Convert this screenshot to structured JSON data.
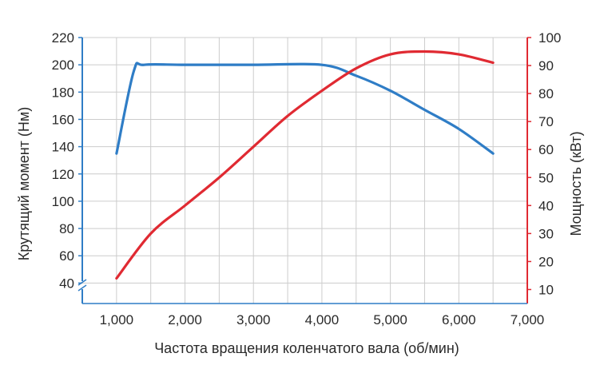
{
  "chart_data": {
    "type": "line",
    "xlabel": "Частота вращения коленчатого вала (об/мин)",
    "ylabel_left": "Крутящий момент (Нм)",
    "ylabel_right": "Мощность (кВт)",
    "xlim": [
      500,
      7000
    ],
    "ylim_left": [
      25,
      220
    ],
    "ylim_right": [
      5,
      100
    ],
    "x_ticks": [
      1000,
      2000,
      3000,
      4000,
      5000,
      6000,
      7000
    ],
    "x_tick_labels": [
      "1,000",
      "2,000",
      "3,000",
      "4,000",
      "5,000",
      "6,000",
      "7,000"
    ],
    "y_left_ticks": [
      40,
      60,
      80,
      100,
      120,
      140,
      160,
      180,
      200,
      220
    ],
    "y_left_tick_labels": [
      "40",
      "60",
      "80",
      "100",
      "120",
      "140",
      "160",
      "180",
      "200",
      "220"
    ],
    "y_right_ticks": [
      10,
      20,
      30,
      40,
      50,
      60,
      70,
      80,
      90,
      100
    ],
    "y_right_tick_labels": [
      "10",
      "20",
      "30",
      "40",
      "50",
      "60",
      "70",
      "80",
      "90",
      "100"
    ],
    "grid": true,
    "left_axis_break": true,
    "series": [
      {
        "axis": "left",
        "color": "#2f7dc6",
        "points": [
          [
            1000,
            135
          ],
          [
            1250,
            195
          ],
          [
            1400,
            200
          ],
          [
            2000,
            200
          ],
          [
            3000,
            200
          ],
          [
            4000,
            200
          ],
          [
            4500,
            192
          ],
          [
            5000,
            181
          ],
          [
            5500,
            167
          ],
          [
            6000,
            153
          ],
          [
            6500,
            135
          ]
        ]
      },
      {
        "axis": "right",
        "color": "#e02a32",
        "points": [
          [
            1000,
            14
          ],
          [
            1500,
            30
          ],
          [
            2000,
            40
          ],
          [
            2500,
            50
          ],
          [
            3000,
            61
          ],
          [
            3500,
            72
          ],
          [
            4000,
            81
          ],
          [
            4500,
            89
          ],
          [
            5000,
            94
          ],
          [
            5500,
            95
          ],
          [
            6000,
            94
          ],
          [
            6500,
            91
          ]
        ]
      }
    ],
    "colors": {
      "left_axis": "#2f7dc6",
      "right_axis": "#e02a32",
      "grid": "#cccccc",
      "text": "#2a2a2a"
    }
  }
}
